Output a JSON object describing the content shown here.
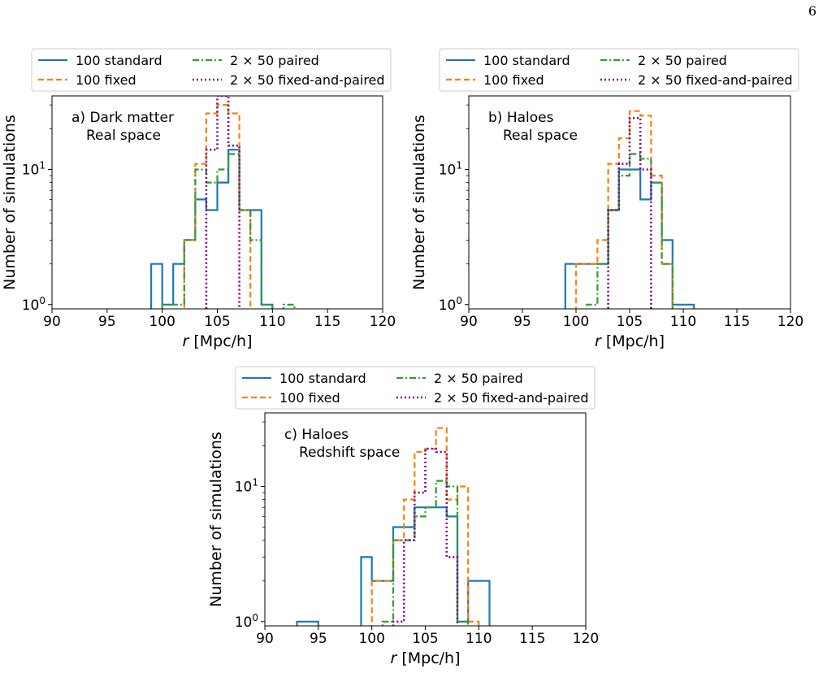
{
  "page": {
    "number": "6"
  },
  "legend": {
    "entries": [
      {
        "label": "100 standard",
        "color": "#1f77b4",
        "style": "solid"
      },
      {
        "label": "100 fixed",
        "color": "#ff7f0e",
        "style": "dashed"
      },
      {
        "label": "2 × 50 paired",
        "color": "#2ca02c",
        "style": "dashdot"
      },
      {
        "label": "2 × 50 fixed-and-paired",
        "color": "#800080",
        "style": "dotted"
      }
    ],
    "placement": "above each panel, 2 columns"
  },
  "chart_data": [
    {
      "type": "histogram",
      "panel": "a",
      "annotation": [
        "a) Dark matter",
        "Real space"
      ],
      "xlabel": "r [Mpc/h]",
      "ylabel": "Number of simulations",
      "yscale": "log",
      "xlim": [
        90,
        120
      ],
      "ylim": [
        0.93,
        35
      ],
      "xticks": [
        90,
        95,
        100,
        105,
        110,
        115,
        120
      ],
      "yticks": [
        {
          "value": 1,
          "label": "10^0"
        },
        {
          "value": 10,
          "label": "10^1"
        }
      ],
      "bin_edges": [
        99,
        100,
        101,
        102,
        103,
        104,
        105,
        106,
        107,
        108,
        109,
        110,
        111,
        112
      ],
      "series": [
        {
          "name": "100 standard",
          "counts": [
            2,
            1,
            2,
            3,
            6,
            5,
            8,
            14,
            5,
            5,
            1,
            0,
            0
          ]
        },
        {
          "name": "100 fixed",
          "counts": [
            0,
            0,
            0,
            3,
            11,
            26,
            30,
            26,
            5,
            0,
            0,
            0,
            0
          ]
        },
        {
          "name": "2 × 50 paired",
          "counts": [
            0,
            1,
            1,
            3,
            10,
            8,
            10,
            13,
            5,
            3,
            1,
            0,
            1
          ]
        },
        {
          "name": "2 × 50 fixed-and-paired",
          "counts": [
            0,
            0,
            0,
            0,
            0,
            14,
            35,
            15,
            0,
            0,
            0,
            0,
            0
          ]
        }
      ]
    },
    {
      "type": "histogram",
      "panel": "b",
      "annotation": [
        "b) Haloes",
        "Real space"
      ],
      "xlabel": "r [Mpc/h]",
      "ylabel": "Number of simulations",
      "yscale": "log",
      "xlim": [
        90,
        120
      ],
      "ylim": [
        0.93,
        35
      ],
      "xticks": [
        90,
        95,
        100,
        105,
        110,
        115,
        120
      ],
      "yticks": [
        {
          "value": 1,
          "label": "10^0"
        },
        {
          "value": 10,
          "label": "10^1"
        }
      ],
      "bin_edges": [
        99,
        100,
        101,
        102,
        103,
        104,
        105,
        106,
        107,
        108,
        109,
        110,
        111
      ],
      "series": [
        {
          "name": "100 standard",
          "counts": [
            2,
            2,
            2,
            2,
            5,
            10,
            10,
            6,
            8,
            3,
            1,
            1
          ]
        },
        {
          "name": "100 fixed",
          "counts": [
            0,
            2,
            2,
            3,
            11,
            17,
            27,
            25,
            9,
            2,
            0,
            0
          ]
        },
        {
          "name": "2 × 50 paired",
          "counts": [
            0,
            0,
            1,
            2,
            5,
            9,
            13,
            12,
            8,
            2,
            0,
            0
          ]
        },
        {
          "name": "2 × 50 fixed-and-paired",
          "counts": [
            0,
            0,
            0,
            0,
            5,
            11,
            24,
            10,
            0,
            0,
            0,
            0
          ]
        }
      ]
    },
    {
      "type": "histogram",
      "panel": "c",
      "annotation": [
        "c) Haloes",
        "Redshift space"
      ],
      "xlabel": "r [Mpc/h]",
      "ylabel": "Number of simulations",
      "yscale": "log",
      "xlim": [
        90,
        120
      ],
      "ylim": [
        0.93,
        35
      ],
      "xticks": [
        90,
        95,
        100,
        105,
        110,
        115,
        120
      ],
      "yticks": [
        {
          "value": 1,
          "label": "10^0"
        },
        {
          "value": 10,
          "label": "10^1"
        }
      ],
      "bin_edges": [
        93,
        94,
        95,
        96,
        97,
        98,
        99,
        100,
        101,
        102,
        103,
        104,
        105,
        106,
        107,
        108,
        109,
        110,
        111
      ],
      "series": [
        {
          "name": "100 standard",
          "counts": [
            1,
            1,
            0,
            0,
            0,
            0,
            3,
            2,
            2,
            5,
            5,
            7,
            7,
            7,
            6,
            1,
            2,
            2
          ]
        },
        {
          "name": "100 fixed",
          "counts": [
            0,
            0,
            0,
            0,
            0,
            0,
            0,
            2,
            2,
            4,
            8,
            18,
            19,
            27,
            8,
            10,
            1,
            0
          ]
        },
        {
          "name": "2 × 50 paired",
          "counts": [
            0,
            0,
            0,
            0,
            0,
            0,
            0,
            0,
            1,
            4,
            4,
            6,
            7,
            11,
            10,
            1,
            0,
            0
          ]
        },
        {
          "name": "2 × 50 fixed-and-paired",
          "counts": [
            0,
            0,
            0,
            0,
            0,
            0,
            0,
            0,
            0,
            1,
            4,
            9,
            19,
            18,
            3,
            0,
            0,
            0
          ]
        }
      ]
    }
  ]
}
